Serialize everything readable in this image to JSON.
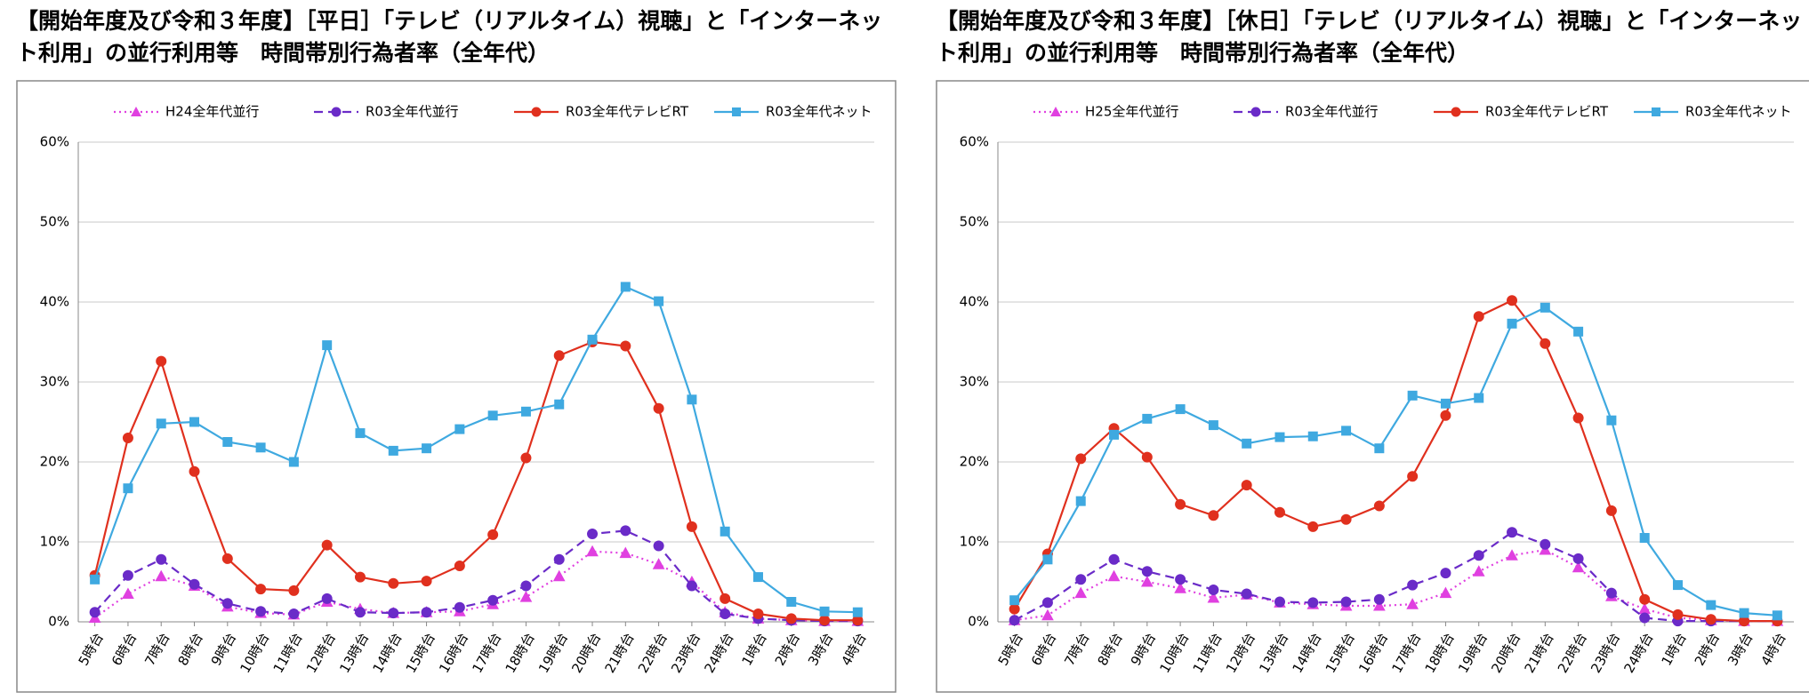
{
  "chart_data": [
    {
      "type": "line",
      "title": "【開始年度及び令和３年度】［平日］「テレビ（リアルタイム）視聴」と「インターネット利用」の並行利用等　時間帯別行為者率（全年代）",
      "categories": [
        "5時台",
        "6時台",
        "7時台",
        "8時台",
        "9時台",
        "10時台",
        "11時台",
        "12時台",
        "13時台",
        "14時台",
        "15時台",
        "16時台",
        "17時台",
        "18時台",
        "19時台",
        "20時台",
        "21時台",
        "22時台",
        "23時台",
        "24時台",
        "1時台",
        "2時台",
        "3時台",
        "4時台"
      ],
      "ylim": [
        0,
        60
      ],
      "yticks": [
        {
          "value": 0,
          "label": "0%"
        },
        {
          "value": 10,
          "label": "10%"
        },
        {
          "value": 20,
          "label": "20%"
        },
        {
          "value": 30,
          "label": "30%"
        },
        {
          "value": 40,
          "label": "40%"
        },
        {
          "value": 50,
          "label": "50%"
        },
        {
          "value": 60,
          "label": "60%"
        }
      ],
      "grid": true,
      "legend": "top",
      "series": [
        {
          "name": "H24全年代並行",
          "color": "#e040e0",
          "line_style": "dotted",
          "marker": "triangle",
          "values": [
            0.5,
            3.5,
            5.7,
            4.5,
            1.9,
            1.1,
            0.9,
            2.5,
            1.6,
            1.1,
            1.2,
            1.3,
            2.2,
            3.1,
            5.7,
            8.8,
            8.6,
            7.2,
            5.0,
            1.2,
            0.4,
            0.2,
            0.1,
            0.1
          ]
        },
        {
          "name": "R03全年代並行",
          "color": "#6a2bc8",
          "line_style": "dashed",
          "marker": "circle",
          "values": [
            1.2,
            5.8,
            7.8,
            4.7,
            2.3,
            1.3,
            1.0,
            2.9,
            1.2,
            1.1,
            1.2,
            1.8,
            2.7,
            4.5,
            7.8,
            11.0,
            11.4,
            9.5,
            4.5,
            1.0,
            0.4,
            0.2,
            0.1,
            0.1
          ]
        },
        {
          "name": "R03全年代テレビRT",
          "color": "#e0301e",
          "line_style": "solid",
          "marker": "circle",
          "values": [
            5.8,
            23.0,
            32.6,
            18.8,
            7.9,
            4.1,
            3.9,
            9.6,
            5.6,
            4.8,
            5.1,
            7.0,
            10.9,
            20.5,
            33.3,
            35.0,
            34.5,
            26.7,
            11.9,
            2.9,
            1.0,
            0.4,
            0.2,
            0.2
          ]
        },
        {
          "name": "R03全年代ネット",
          "color": "#3fa9e0",
          "line_style": "solid",
          "marker": "square",
          "values": [
            5.3,
            16.7,
            24.8,
            25.0,
            22.5,
            21.8,
            20.0,
            34.6,
            23.6,
            21.4,
            21.7,
            24.1,
            25.8,
            26.3,
            27.2,
            35.3,
            41.9,
            40.1,
            27.8,
            11.3,
            5.6,
            2.5,
            1.3,
            1.2
          ]
        }
      ]
    },
    {
      "type": "line",
      "title": "【開始年度及び令和３年度】［休日］「テレビ（リアルタイム）視聴」と「インターネット利用」の並行利用等　時間帯別行為者率（全年代）",
      "categories": [
        "5時台",
        "6時台",
        "7時台",
        "8時台",
        "9時台",
        "10時台",
        "11時台",
        "12時台",
        "13時台",
        "14時台",
        "15時台",
        "16時台",
        "17時台",
        "18時台",
        "19時台",
        "20時台",
        "21時台",
        "22時台",
        "23時台",
        "24時台",
        "1時台",
        "2時台",
        "3時台",
        "4時台"
      ],
      "ylim": [
        0,
        60
      ],
      "yticks": [
        {
          "value": 0,
          "label": "0%"
        },
        {
          "value": 10,
          "label": "10%"
        },
        {
          "value": 20,
          "label": "20%"
        },
        {
          "value": 30,
          "label": "30%"
        },
        {
          "value": 40,
          "label": "40%"
        },
        {
          "value": 50,
          "label": "50%"
        },
        {
          "value": 60,
          "label": "60%"
        }
      ],
      "grid": true,
      "legend": "top",
      "series": [
        {
          "name": "H25全年代並行",
          "color": "#e040e0",
          "line_style": "dotted",
          "marker": "triangle",
          "values": [
            0.2,
            0.8,
            3.6,
            5.7,
            5.0,
            4.2,
            3.0,
            3.4,
            2.4,
            2.2,
            2.0,
            2.0,
            2.2,
            3.6,
            6.3,
            8.3,
            9.0,
            6.8,
            3.2,
            1.6,
            0.5,
            0.2,
            0.1,
            0.1
          ]
        },
        {
          "name": "R03全年代並行",
          "color": "#6a2bc8",
          "line_style": "dashed",
          "marker": "circle",
          "values": [
            0.2,
            2.4,
            5.3,
            7.8,
            6.3,
            5.3,
            4.0,
            3.5,
            2.5,
            2.4,
            2.5,
            2.8,
            4.6,
            6.1,
            8.3,
            11.2,
            9.7,
            7.9,
            3.6,
            0.5,
            0.1,
            0.1,
            0.1,
            0.1
          ]
        },
        {
          "name": "R03全年代テレビRT",
          "color": "#e0301e",
          "line_style": "solid",
          "marker": "circle",
          "values": [
            1.6,
            8.5,
            20.4,
            24.2,
            20.6,
            14.7,
            13.3,
            17.1,
            13.7,
            11.9,
            12.8,
            14.5,
            18.2,
            25.8,
            38.2,
            40.2,
            34.8,
            25.5,
            13.9,
            2.8,
            0.9,
            0.3,
            0.1,
            0.1
          ]
        },
        {
          "name": "R03全年代ネット",
          "color": "#3fa9e0",
          "line_style": "solid",
          "marker": "square",
          "values": [
            2.7,
            7.8,
            15.1,
            23.4,
            25.4,
            26.6,
            24.6,
            22.3,
            23.1,
            23.2,
            23.9,
            21.7,
            28.3,
            27.3,
            28.0,
            37.3,
            39.3,
            36.3,
            25.2,
            10.5,
            4.6,
            2.1,
            1.1,
            0.8
          ]
        }
      ]
    }
  ]
}
